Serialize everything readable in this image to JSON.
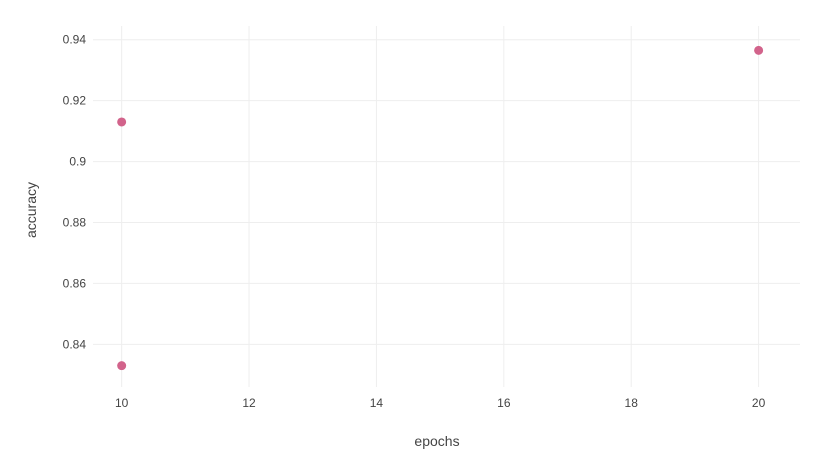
{
  "chart_data": {
    "type": "scatter",
    "title": "",
    "xlabel": "epochs",
    "ylabel": "accuracy",
    "x_ticks": [
      10,
      12,
      14,
      16,
      18,
      20
    ],
    "y_ticks": [
      0.84,
      0.86,
      0.88,
      0.9,
      0.92,
      0.94
    ],
    "xlim": [
      9.55,
      20.65
    ],
    "ylim": [
      0.826,
      0.9445
    ],
    "grid": true,
    "series": [
      {
        "color": "#d2638b",
        "points": [
          {
            "x": 10,
            "y": 0.913
          },
          {
            "x": 10,
            "y": 0.833
          },
          {
            "x": 20,
            "y": 0.9365
          }
        ]
      }
    ]
  }
}
